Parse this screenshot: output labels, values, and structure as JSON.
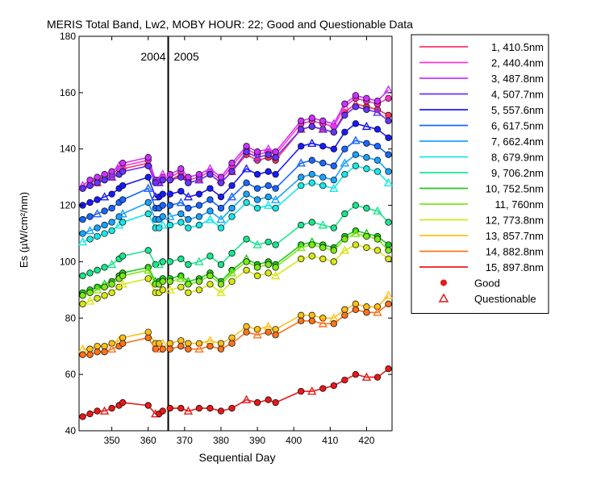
{
  "chart_data": {
    "type": "line",
    "title": "MERIS Total Band,  Lw2, MOBY HOUR: 22;  Good and Questionable Data",
    "xlabel": "Sequential Day",
    "ylabel": "Es (µW/cm²/nm)",
    "xlim": [
      341,
      427
    ],
    "ylim": [
      40,
      180
    ],
    "xticks": [
      350,
      360,
      370,
      380,
      390,
      400,
      410,
      420
    ],
    "yticks": [
      40,
      60,
      80,
      100,
      120,
      140,
      160,
      180
    ],
    "grid": false,
    "legend_position": "right",
    "year_divider": {
      "x": 365.5,
      "left_label": "2004",
      "right_label": "2005"
    },
    "legend_markers": {
      "good": "Good",
      "questionable": "Questionable"
    },
    "x": [
      342,
      344,
      346,
      348,
      350,
      352,
      353,
      360,
      362,
      363,
      364,
      366,
      369,
      371,
      374,
      377,
      380,
      383,
      387,
      390,
      393,
      395,
      402,
      405,
      408,
      411,
      414,
      417,
      420,
      423,
      426
    ],
    "series": [
      {
        "name": "1, 410.5nm",
        "color": "#ff3366",
        "values": [
          126,
          127,
          128,
          129,
          130,
          131,
          133,
          135,
          128,
          128,
          129,
          129,
          131,
          128,
          129,
          131,
          128,
          132,
          138,
          136,
          137,
          136,
          147,
          148,
          147,
          146,
          153,
          156,
          155,
          154,
          152
        ]
      },
      {
        "name": "2, 440.4nm",
        "color": "#ff33cc",
        "values": [
          126,
          128,
          129,
          130,
          131,
          133,
          134,
          136,
          128,
          128,
          130,
          130,
          132,
          129,
          130,
          132,
          129,
          134,
          140,
          138,
          139,
          138,
          149,
          150,
          149,
          148,
          155,
          158,
          157,
          156,
          158
        ]
      },
      {
        "name": "3, 487.8nm",
        "color": "#cc33ff",
        "values": [
          127,
          129,
          130,
          131,
          132,
          134,
          135,
          137,
          129,
          129,
          131,
          131,
          133,
          130,
          131,
          133,
          130,
          135,
          141,
          139,
          140,
          139,
          150,
          151,
          150,
          149,
          156,
          159,
          158,
          157,
          161
        ]
      },
      {
        "name": "4, 507.7nm",
        "color": "#6633ff",
        "values": [
          126,
          127,
          128,
          129,
          130,
          131,
          132,
          134,
          128,
          128,
          129,
          129,
          130,
          128,
          129,
          131,
          128,
          132,
          139,
          137,
          138,
          137,
          147,
          148,
          147,
          146,
          152,
          155,
          154,
          153,
          150
        ]
      },
      {
        "name": "5, 557.6nm",
        "color": "#1a1aff",
        "values": [
          120,
          121,
          122,
          123,
          124,
          126,
          127,
          130,
          123,
          123,
          124,
          124,
          125,
          123,
          124,
          126,
          123,
          127,
          133,
          131,
          132,
          131,
          141,
          142,
          141,
          140,
          146,
          149,
          148,
          147,
          144
        ]
      },
      {
        "name": "6, 617.5nm",
        "color": "#1a66ff",
        "values": [
          115,
          116,
          117,
          118,
          119,
          121,
          122,
          126,
          119,
          119,
          120,
          120,
          121,
          119,
          120,
          122,
          119,
          123,
          128,
          126,
          127,
          126,
          135,
          136,
          135,
          134,
          140,
          143,
          142,
          141,
          138
        ]
      },
      {
        "name": "7, 662.4nm",
        "color": "#1aa3ff",
        "values": [
          110,
          111,
          112,
          113,
          114,
          116,
          117,
          121,
          115,
          115,
          116,
          116,
          117,
          115,
          116,
          118,
          115,
          119,
          124,
          122,
          123,
          122,
          130,
          131,
          130,
          129,
          135,
          138,
          137,
          136,
          132
        ]
      },
      {
        "name": "8, 679.9nm",
        "color": "#1ae6e6",
        "values": [
          107,
          108,
          109,
          110,
          111,
          113,
          114,
          117,
          112,
          112,
          113,
          113,
          114,
          112,
          113,
          115,
          112,
          116,
          121,
          119,
          120,
          119,
          127,
          128,
          127,
          126,
          131,
          134,
          133,
          132,
          128
        ]
      },
      {
        "name": "9, 706.2nm",
        "color": "#1ae68c",
        "values": [
          95,
          96,
          97,
          98,
          99,
          101,
          102,
          104,
          99,
          99,
          100,
          100,
          101,
          99,
          100,
          102,
          99,
          103,
          108,
          106,
          107,
          106,
          113,
          114,
          113,
          112,
          117,
          120,
          119,
          118,
          114
        ]
      },
      {
        "name": "10, 752.5nm",
        "color": "#1acc1a",
        "values": [
          89,
          90,
          91,
          92,
          93,
          95,
          96,
          98,
          93,
          93,
          94,
          94,
          95,
          93,
          94,
          96,
          93,
          97,
          101,
          99,
          100,
          99,
          106,
          107,
          106,
          105,
          109,
          111,
          110,
          109,
          106
        ]
      },
      {
        "name": "11,   760nm",
        "color": "#80e61a",
        "values": [
          88,
          89,
          90,
          91,
          92,
          94,
          95,
          97,
          92,
          92,
          93,
          93,
          94,
          92,
          93,
          95,
          92,
          96,
          100,
          98,
          99,
          98,
          105,
          106,
          105,
          104,
          108,
          110,
          109,
          108,
          104
        ]
      },
      {
        "name": "12, 773.8nm",
        "color": "#d9e61a",
        "values": [
          85,
          86,
          87,
          88,
          89,
          91,
          92,
          94,
          89,
          89,
          90,
          90,
          91,
          89,
          90,
          92,
          89,
          93,
          97,
          95,
          96,
          95,
          101,
          102,
          101,
          100,
          104,
          106,
          105,
          104,
          101
        ]
      },
      {
        "name": "13, 857.7nm",
        "color": "#ffbf1a",
        "values": [
          69,
          69,
          70,
          70,
          71,
          72,
          73,
          75,
          71,
          71,
          71,
          71,
          72,
          71,
          71,
          72,
          71,
          73,
          77,
          76,
          77,
          76,
          81,
          81,
          80,
          80,
          83,
          85,
          84,
          84,
          88
        ]
      },
      {
        "name": "14, 882.8nm",
        "color": "#ff731a",
        "values": [
          67,
          67,
          68,
          68,
          69,
          70,
          71,
          73,
          69,
          69,
          69,
          69,
          70,
          69,
          69,
          70,
          69,
          71,
          75,
          74,
          75,
          74,
          79,
          79,
          78,
          78,
          81,
          83,
          82,
          82,
          85
        ]
      },
      {
        "name": "15, 897.8nm",
        "color": "#e61a1a",
        "values": [
          45,
          46,
          47,
          47,
          48,
          49,
          50,
          49,
          46,
          46,
          47,
          48,
          48,
          47,
          48,
          48,
          47,
          48,
          51,
          50,
          51,
          50,
          54,
          54,
          55,
          56,
          58,
          60,
          59,
          59,
          62
        ]
      }
    ]
  }
}
